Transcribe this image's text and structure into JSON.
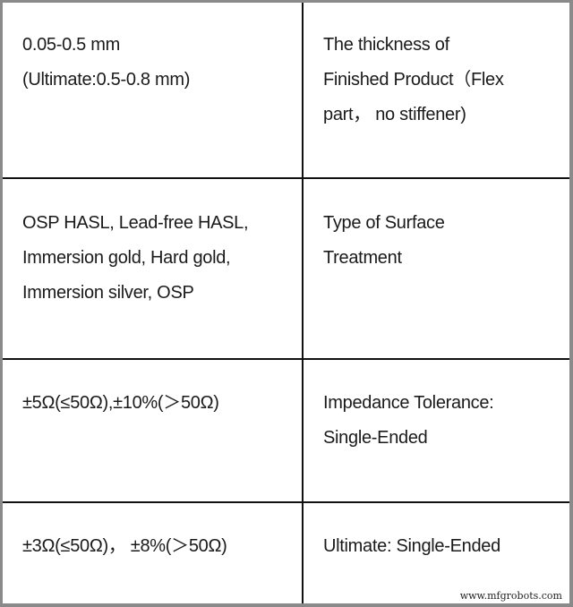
{
  "table": {
    "rows": [
      {
        "value": "0.05-0.5 mm\n(Ultimate:0.5-0.8 mm)",
        "parameter": "The thickness of\nFinished Product（Flex\npart， no stiffener)"
      },
      {
        "value": "OSP HASL, Lead-free HASL,\nImmersion gold, Hard gold,\nImmersion silver, OSP",
        "parameter": "Type of Surface\nTreatment"
      },
      {
        "value": "±5Ω(≤50Ω),±10%(＞50Ω)",
        "parameter": "Impedance Tolerance:\nSingle-Ended"
      },
      {
        "value": "±3Ω(≤50Ω)， ±8%(＞50Ω)",
        "parameter": "Ultimate: Single-Ended"
      }
    ]
  },
  "watermark": "www.mfgrobots.com"
}
